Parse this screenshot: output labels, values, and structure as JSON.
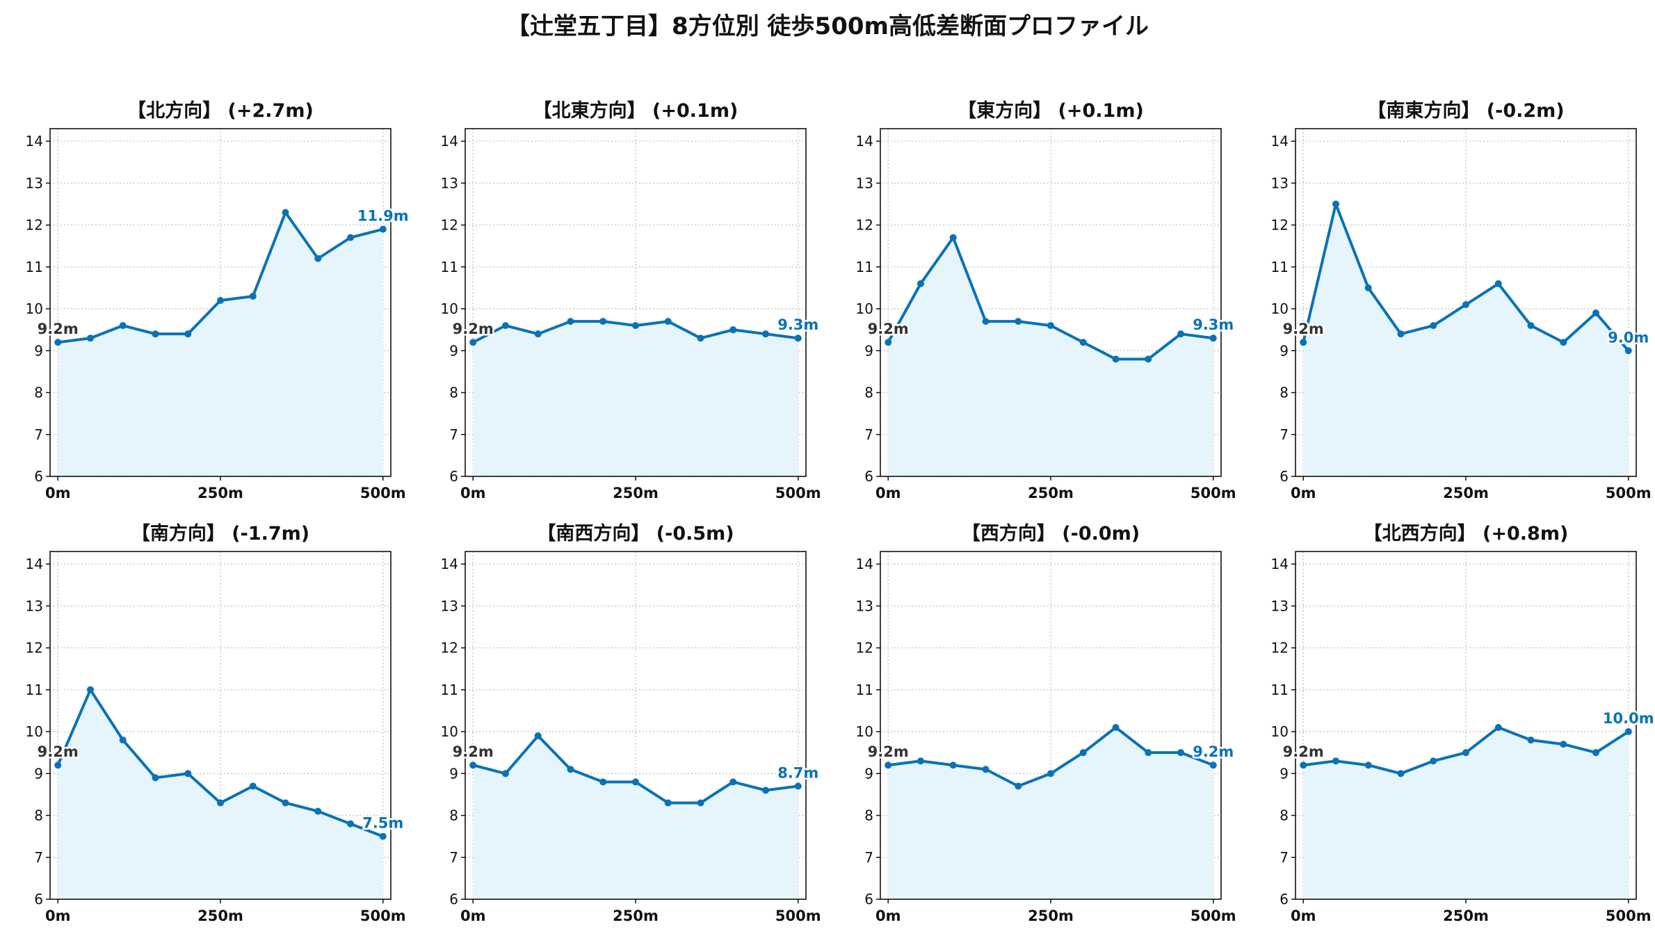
{
  "suptitle": "【辻堂五丁目】8方位別 徒歩500m高低差断面プロファイル",
  "colors": {
    "line": "#0a72b5",
    "fill": "#e6f5fb",
    "axis": "#111111",
    "grid": "#bdbdbd"
  },
  "chart_data": [
    {
      "type": "area",
      "title": "【北方向】 (+2.7m)",
      "x": [
        0,
        50,
        100,
        150,
        200,
        250,
        300,
        350,
        400,
        450,
        500
      ],
      "y": [
        9.2,
        9.3,
        9.6,
        9.4,
        9.4,
        10.2,
        10.3,
        12.3,
        11.2,
        11.7,
        11.9
      ],
      "start_label": "9.2m",
      "end_label": "11.9m",
      "xticks": [
        "0m",
        "250m",
        "500m"
      ],
      "xtick_values": [
        0,
        250,
        500
      ],
      "yticks": [
        "6",
        "7",
        "8",
        "9",
        "10",
        "11",
        "12",
        "13",
        "14"
      ],
      "ylim": [
        6,
        14.3
      ],
      "xlim": [
        -12,
        512
      ],
      "grid": true
    },
    {
      "type": "area",
      "title": "【北東方向】 (+0.1m)",
      "x": [
        0,
        50,
        100,
        150,
        200,
        250,
        300,
        350,
        400,
        450,
        500
      ],
      "y": [
        9.2,
        9.6,
        9.4,
        9.7,
        9.7,
        9.6,
        9.7,
        9.3,
        9.5,
        9.4,
        9.3
      ],
      "start_label": "9.2m",
      "end_label": "9.3m",
      "xticks": [
        "0m",
        "250m",
        "500m"
      ],
      "xtick_values": [
        0,
        250,
        500
      ],
      "yticks": [
        "6",
        "7",
        "8",
        "9",
        "10",
        "11",
        "12",
        "13",
        "14"
      ],
      "ylim": [
        6,
        14.3
      ],
      "xlim": [
        -12,
        512
      ],
      "grid": true
    },
    {
      "type": "area",
      "title": "【東方向】 (+0.1m)",
      "x": [
        0,
        50,
        100,
        150,
        200,
        250,
        300,
        350,
        400,
        450,
        500
      ],
      "y": [
        9.2,
        10.6,
        11.7,
        9.7,
        9.7,
        9.6,
        9.2,
        8.8,
        8.8,
        9.4,
        9.3
      ],
      "start_label": "9.2m",
      "end_label": "9.3m",
      "xticks": [
        "0m",
        "250m",
        "500m"
      ],
      "xtick_values": [
        0,
        250,
        500
      ],
      "yticks": [
        "6",
        "7",
        "8",
        "9",
        "10",
        "11",
        "12",
        "13",
        "14"
      ],
      "ylim": [
        6,
        14.3
      ],
      "xlim": [
        -12,
        512
      ],
      "grid": true
    },
    {
      "type": "area",
      "title": "【南東方向】 (-0.2m)",
      "x": [
        0,
        50,
        100,
        150,
        200,
        250,
        300,
        350,
        400,
        450,
        500
      ],
      "y": [
        9.2,
        12.5,
        10.5,
        9.4,
        9.6,
        10.1,
        10.6,
        9.6,
        9.2,
        9.9,
        9.0
      ],
      "start_label": "9.2m",
      "end_label": "9.0m",
      "xticks": [
        "0m",
        "250m",
        "500m"
      ],
      "xtick_values": [
        0,
        250,
        500
      ],
      "yticks": [
        "6",
        "7",
        "8",
        "9",
        "10",
        "11",
        "12",
        "13",
        "14"
      ],
      "ylim": [
        6,
        14.3
      ],
      "xlim": [
        -12,
        512
      ],
      "grid": true
    },
    {
      "type": "area",
      "title": "【南方向】 (-1.7m)",
      "x": [
        0,
        50,
        100,
        150,
        200,
        250,
        300,
        350,
        400,
        450,
        500
      ],
      "y": [
        9.2,
        11.0,
        9.8,
        8.9,
        9.0,
        8.3,
        8.7,
        8.3,
        8.1,
        7.8,
        7.5
      ],
      "start_label": "9.2m",
      "end_label": "7.5m",
      "xticks": [
        "0m",
        "250m",
        "500m"
      ],
      "xtick_values": [
        0,
        250,
        500
      ],
      "yticks": [
        "6",
        "7",
        "8",
        "9",
        "10",
        "11",
        "12",
        "13",
        "14"
      ],
      "ylim": [
        6,
        14.3
      ],
      "xlim": [
        -12,
        512
      ],
      "grid": true
    },
    {
      "type": "area",
      "title": "【南西方向】 (-0.5m)",
      "x": [
        0,
        50,
        100,
        150,
        200,
        250,
        300,
        350,
        400,
        450,
        500
      ],
      "y": [
        9.2,
        9.0,
        9.9,
        9.1,
        8.8,
        8.8,
        8.3,
        8.3,
        8.8,
        8.6,
        8.7
      ],
      "start_label": "9.2m",
      "end_label": "8.7m",
      "xticks": [
        "0m",
        "250m",
        "500m"
      ],
      "xtick_values": [
        0,
        250,
        500
      ],
      "yticks": [
        "6",
        "7",
        "8",
        "9",
        "10",
        "11",
        "12",
        "13",
        "14"
      ],
      "ylim": [
        6,
        14.3
      ],
      "xlim": [
        -12,
        512
      ],
      "grid": true
    },
    {
      "type": "area",
      "title": "【西方向】 (-0.0m)",
      "x": [
        0,
        50,
        100,
        150,
        200,
        250,
        300,
        350,
        400,
        450,
        500
      ],
      "y": [
        9.2,
        9.3,
        9.2,
        9.1,
        8.7,
        9.0,
        9.5,
        10.1,
        9.5,
        9.5,
        9.2
      ],
      "start_label": "9.2m",
      "end_label": "9.2m",
      "xticks": [
        "0m",
        "250m",
        "500m"
      ],
      "xtick_values": [
        0,
        250,
        500
      ],
      "yticks": [
        "6",
        "7",
        "8",
        "9",
        "10",
        "11",
        "12",
        "13",
        "14"
      ],
      "ylim": [
        6,
        14.3
      ],
      "xlim": [
        -12,
        512
      ],
      "grid": true
    },
    {
      "type": "area",
      "title": "【北西方向】 (+0.8m)",
      "x": [
        0,
        50,
        100,
        150,
        200,
        250,
        300,
        350,
        400,
        450,
        500
      ],
      "y": [
        9.2,
        9.3,
        9.2,
        9.0,
        9.3,
        9.5,
        10.1,
        9.8,
        9.7,
        9.5,
        10.0
      ],
      "start_label": "9.2m",
      "end_label": "10.0m",
      "xticks": [
        "0m",
        "250m",
        "500m"
      ],
      "xtick_values": [
        0,
        250,
        500
      ],
      "yticks": [
        "6",
        "7",
        "8",
        "9",
        "10",
        "11",
        "12",
        "13",
        "14"
      ],
      "ylim": [
        6,
        14.3
      ],
      "xlim": [
        -12,
        512
      ],
      "grid": true
    }
  ]
}
